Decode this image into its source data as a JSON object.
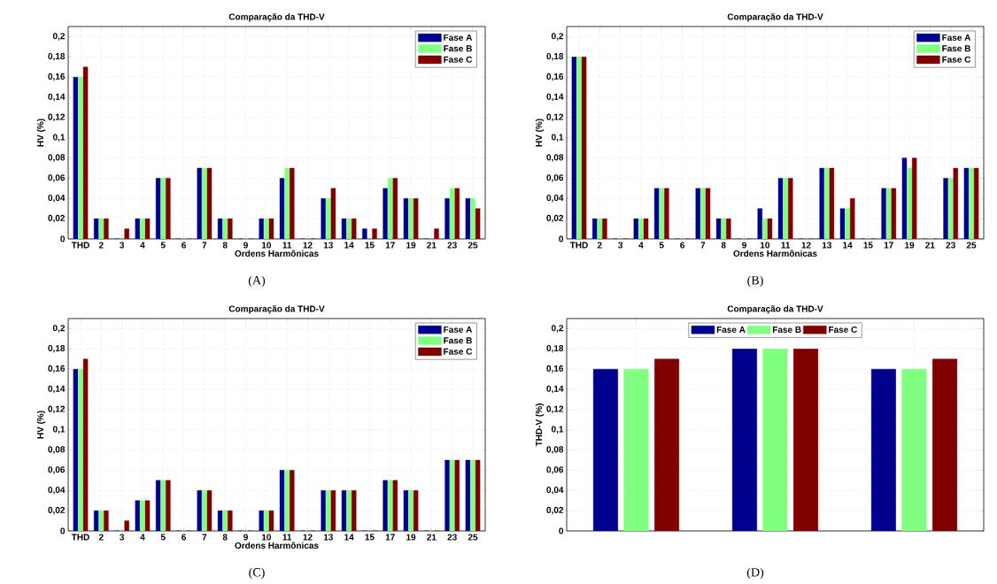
{
  "chart_data": [
    {
      "type": "bar",
      "title": "Comparação da THD-V",
      "xlabel": "Ordens Harmônicas",
      "ylabel": "HV (%)",
      "annotations": [
        "(A)"
      ],
      "categories": [
        "THD",
        "2",
        "3",
        "4",
        "5",
        "6",
        "7",
        "8",
        "9",
        "10",
        "11",
        "12",
        "13",
        "14",
        "15",
        "17",
        "19",
        "21",
        "23",
        "25"
      ],
      "series": [
        {
          "name": "Fase A",
          "color": "#00008f",
          "values": [
            0.16,
            0.02,
            0,
            0.02,
            0.06,
            0,
            0.07,
            0.02,
            0,
            0.02,
            0.06,
            0,
            0.04,
            0.02,
            0.01,
            0.05,
            0.04,
            0,
            0.04,
            0.04
          ]
        },
        {
          "name": "Fase B",
          "color": "#80ff80",
          "values": [
            0.16,
            0.02,
            0,
            0.02,
            0.06,
            0,
            0.07,
            0.02,
            0,
            0.02,
            0.07,
            0,
            0.04,
            0.02,
            0,
            0.06,
            0.04,
            0,
            0.05,
            0.04
          ]
        },
        {
          "name": "Fase C",
          "color": "#800000",
          "values": [
            0.17,
            0.02,
            0.01,
            0.02,
            0.06,
            0,
            0.07,
            0.02,
            0,
            0.02,
            0.07,
            0,
            0.05,
            0.02,
            0.01,
            0.06,
            0.04,
            0.01,
            0.05,
            0.03
          ]
        }
      ],
      "ylim": [
        0,
        0.21
      ],
      "yticks": [
        0,
        {
          "value": 0.02,
          "label": "0,02"
        },
        {
          "value": 0.04,
          "label": "0,04"
        },
        {
          "value": 0.06,
          "label": "0,06"
        },
        {
          "value": 0.08,
          "label": "0,08"
        },
        {
          "value": 0.1,
          "label": "0,1"
        },
        {
          "value": 0.12,
          "label": "0,12"
        },
        {
          "value": 0.14,
          "label": "0,14"
        },
        {
          "value": 0.16,
          "label": "0,16"
        },
        {
          "value": 0.18,
          "label": "0,18"
        },
        {
          "value": 0.2,
          "label": "0,2"
        }
      ],
      "grid": true,
      "legend": "top right"
    },
    {
      "type": "bar",
      "title": "Comparação da THD-V",
      "xlabel": "Ordens Harmônicas",
      "ylabel": "HV (%)",
      "annotations": [
        "(B)"
      ],
      "categories": [
        "THD",
        "2",
        "3",
        "4",
        "5",
        "6",
        "7",
        "8",
        "9",
        "10",
        "11",
        "12",
        "13",
        "14",
        "15",
        "17",
        "19",
        "21",
        "23",
        "25"
      ],
      "series": [
        {
          "name": "Fase A",
          "color": "#00008f",
          "values": [
            0.18,
            0.02,
            0,
            0.02,
            0.05,
            0,
            0.05,
            0.02,
            0,
            0.03,
            0.06,
            0,
            0.07,
            0.03,
            0,
            0.05,
            0.08,
            0,
            0.06,
            0.07
          ]
        },
        {
          "name": "Fase B",
          "color": "#80ff80",
          "values": [
            0.18,
            0.02,
            0,
            0.02,
            0.05,
            0,
            0.05,
            0.02,
            0,
            0.02,
            0.06,
            0,
            0.07,
            0.03,
            0,
            0.05,
            0.07,
            0,
            0.06,
            0.07
          ]
        },
        {
          "name": "Fase C",
          "color": "#800000",
          "values": [
            0.18,
            0.02,
            0,
            0.02,
            0.05,
            0,
            0.05,
            0.02,
            0,
            0.02,
            0.06,
            0,
            0.07,
            0.04,
            0,
            0.05,
            0.08,
            0,
            0.07,
            0.07
          ]
        }
      ],
      "ylim": [
        0,
        0.21
      ],
      "yticks": [
        0,
        {
          "value": 0.02,
          "label": "0,02"
        },
        {
          "value": 0.04,
          "label": "0,04"
        },
        {
          "value": 0.06,
          "label": "0,06"
        },
        {
          "value": 0.08,
          "label": "0,08"
        },
        {
          "value": 0.1,
          "label": "0,1"
        },
        {
          "value": 0.12,
          "label": "0,12"
        },
        {
          "value": 0.14,
          "label": "0,14"
        },
        {
          "value": 0.16,
          "label": "0,16"
        },
        {
          "value": 0.18,
          "label": "0,18"
        },
        {
          "value": 0.2,
          "label": "0,2"
        }
      ],
      "grid": true,
      "legend": "top right"
    },
    {
      "type": "bar",
      "title": "Comparação da THD-V",
      "xlabel": "Ordens Harmônicas",
      "ylabel": "HV (%)",
      "annotations": [
        "(C)"
      ],
      "categories": [
        "THD",
        "2",
        "3",
        "4",
        "5",
        "6",
        "7",
        "8",
        "9",
        "10",
        "11",
        "12",
        "13",
        "14",
        "15",
        "17",
        "19",
        "21",
        "23",
        "25"
      ],
      "series": [
        {
          "name": "Fase A",
          "color": "#00008f",
          "values": [
            0.16,
            0.02,
            0,
            0.03,
            0.05,
            0,
            0.04,
            0.02,
            0,
            0.02,
            0.06,
            0,
            0.04,
            0.04,
            0,
            0.05,
            0.04,
            0,
            0.07,
            0.07
          ]
        },
        {
          "name": "Fase B",
          "color": "#80ff80",
          "values": [
            0.16,
            0.02,
            0,
            0.03,
            0.05,
            0,
            0.04,
            0.02,
            0,
            0.02,
            0.06,
            0,
            0.04,
            0.04,
            0,
            0.05,
            0.04,
            0,
            0.07,
            0.07
          ]
        },
        {
          "name": "Fase C",
          "color": "#800000",
          "values": [
            0.17,
            0.02,
            0.01,
            0.03,
            0.05,
            0,
            0.04,
            0.02,
            0,
            0.02,
            0.06,
            0,
            0.04,
            0.04,
            0,
            0.05,
            0.04,
            0,
            0.07,
            0.07
          ]
        }
      ],
      "ylim": [
        0,
        0.21
      ],
      "yticks": [
        0,
        {
          "value": 0.02,
          "label": "0,02"
        },
        {
          "value": 0.04,
          "label": "0,04"
        },
        {
          "value": 0.06,
          "label": "0,06"
        },
        {
          "value": 0.08,
          "label": "0,08"
        },
        {
          "value": 0.1,
          "label": "0,1"
        },
        {
          "value": 0.12,
          "label": "0,12"
        },
        {
          "value": 0.14,
          "label": "0,14"
        },
        {
          "value": 0.16,
          "label": "0,16"
        },
        {
          "value": 0.18,
          "label": "0,18"
        },
        {
          "value": 0.2,
          "label": "0,2"
        }
      ],
      "grid": true,
      "legend": "top right"
    },
    {
      "type": "bar",
      "title": "Comparação da THD-V",
      "ylabel": "THD-V (%)",
      "annotations": [
        "(D)"
      ],
      "categories": [
        null,
        null,
        null
      ],
      "series": [
        {
          "name": "Fase A",
          "color": "#00008f",
          "values": [
            0.16,
            0.18,
            0.16
          ]
        },
        {
          "name": "Fase B",
          "color": "#80ff80",
          "values": [
            0.16,
            0.18,
            0.16
          ]
        },
        {
          "name": "Fase C",
          "color": "#800000",
          "values": [
            0.17,
            0.18,
            0.17
          ]
        }
      ],
      "ylim": [
        0,
        0.21
      ],
      "yticks": [
        0,
        {
          "value": 0.02,
          "label": "0,02"
        },
        {
          "value": 0.04,
          "label": "0,04"
        },
        {
          "value": 0.06,
          "label": "0,06"
        },
        {
          "value": 0.08,
          "label": "0,08"
        },
        {
          "value": 0.1,
          "label": "0,1"
        },
        {
          "value": 0.12,
          "label": "0,12"
        },
        {
          "value": 0.14,
          "label": "0,14"
        },
        {
          "value": 0.16,
          "label": "0,16"
        },
        {
          "value": 0.18,
          "label": "0,18"
        },
        {
          "value": 0.2,
          "label": "0,2"
        }
      ],
      "grid": true,
      "legend": "top"
    }
  ]
}
